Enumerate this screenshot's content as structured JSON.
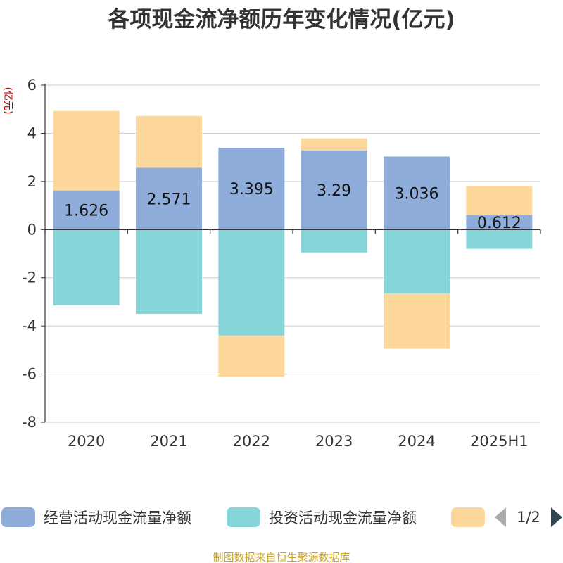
{
  "chart_data": {
    "type": "bar",
    "stacked": true,
    "title": "各项现金流净额历年变化情况(亿元)",
    "ylabel": "(亿元)",
    "categories": [
      "2020",
      "2021",
      "2022",
      "2023",
      "2024",
      "2025H1"
    ],
    "ylim": [
      -8,
      6
    ],
    "yticks": [
      6,
      4,
      2,
      0,
      -2,
      -4,
      -6,
      -8
    ],
    "grid": true,
    "series": [
      {
        "name": "经营活动现金流量净额",
        "color": "#8eaddb",
        "values": [
          1.626,
          2.571,
          3.395,
          3.29,
          3.036,
          0.612
        ],
        "show_labels": true
      },
      {
        "name": "投资活动现金流量净额",
        "color": "#86d5d8",
        "values": [
          -3.15,
          -3.5,
          -4.4,
          -0.95,
          -2.65,
          -0.8
        ],
        "show_labels": false
      },
      {
        "name": "",
        "color": "#fdd89a",
        "values": [
          3.3,
          2.15,
          -1.7,
          0.5,
          -2.3,
          1.2
        ],
        "show_labels": false
      }
    ],
    "legend": {
      "position": "bottom",
      "page": "1/2"
    }
  },
  "footer": "制图数据来自恒生聚源数据库"
}
